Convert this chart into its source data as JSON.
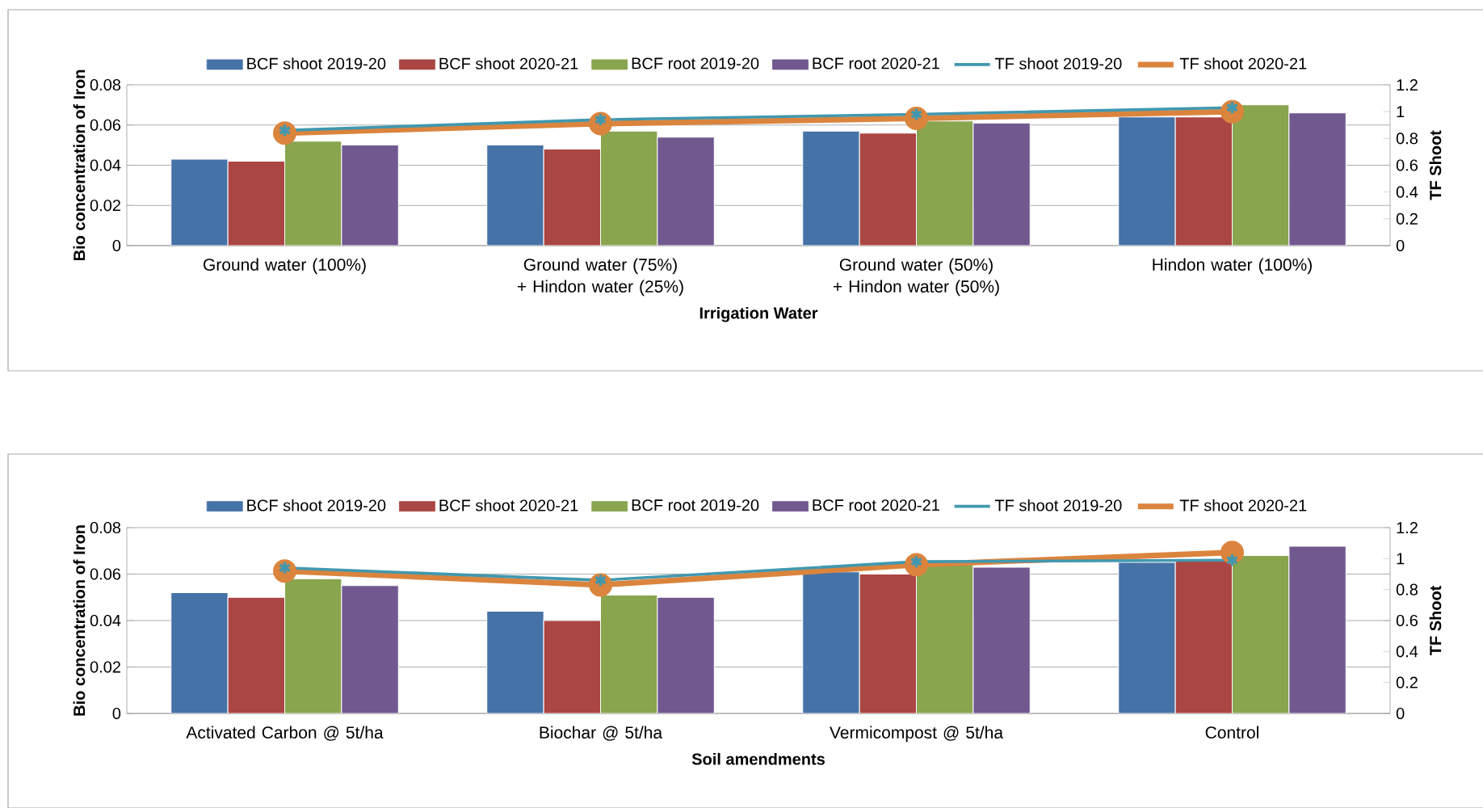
{
  "chart_data": [
    {
      "type": "bar",
      "categories": [
        "Ground water (100%)",
        "Ground water (75%) + Hindon water (25%)",
        "Ground water (50%) + Hindon water (50%)",
        "Hindon water (100%)"
      ],
      "xlabel": "Irrigation Water",
      "ylabel": "Bio concentration of Iron",
      "y2label": "TF Shoot",
      "ylim": [
        0,
        0.08
      ],
      "yticks": [
        0,
        0.02,
        0.04,
        0.06,
        0.08
      ],
      "y2lim": [
        0,
        1.2
      ],
      "y2ticks": [
        0,
        0.2,
        0.4,
        0.6,
        0.8,
        1,
        1.2
      ],
      "grid": "y",
      "legend": "top",
      "series": [
        {
          "name": "BCF shoot 2019-20",
          "color": "#4572a7",
          "values": [
            0.043,
            0.05,
            0.057,
            0.064
          ]
        },
        {
          "name": "BCF shoot 2020-21",
          "color": "#aa4643",
          "values": [
            0.042,
            0.048,
            0.056,
            0.064
          ]
        },
        {
          "name": "BCF root 2019-20",
          "color": "#89a54e",
          "values": [
            0.052,
            0.057,
            0.062,
            0.07
          ]
        },
        {
          "name": "BCF root 2020-21",
          "color": "#71588f",
          "values": [
            0.05,
            0.054,
            0.061,
            0.066
          ]
        },
        {
          "name": "TF shoot 2019-20",
          "type": "line",
          "axis": "y2",
          "marker": "cross",
          "color": "#4198af",
          "values": [
            0.86,
            0.94,
            0.98,
            1.03
          ]
        },
        {
          "name": "TF shoot 2020-21",
          "type": "line",
          "axis": "y2",
          "marker": "circle",
          "color": "#db843d",
          "values": [
            0.84,
            0.91,
            0.95,
            1.0
          ]
        }
      ]
    },
    {
      "type": "bar",
      "categories": [
        "Activated Carbon @ 5t/ha",
        "Biochar @ 5t/ha",
        "Vermicompost @ 5t/ha",
        "Control"
      ],
      "xlabel": "Soil amendments",
      "ylabel": "Bio concentration of Iron",
      "y2label": "TF Shoot",
      "ylim": [
        0,
        0.08
      ],
      "yticks": [
        0,
        0.02,
        0.04,
        0.06,
        0.08
      ],
      "y2lim": [
        0,
        1.2
      ],
      "y2ticks": [
        0,
        0.2,
        0.4,
        0.6,
        0.8,
        1,
        1.2
      ],
      "grid": "y",
      "legend": "top",
      "series": [
        {
          "name": "BCF shoot 2019-20",
          "color": "#4572a7",
          "values": [
            0.052,
            0.044,
            0.061,
            0.065
          ]
        },
        {
          "name": "BCF shoot 2020-21",
          "color": "#aa4643",
          "values": [
            0.05,
            0.04,
            0.06,
            0.066
          ]
        },
        {
          "name": "BCF root 2019-20",
          "color": "#89a54e",
          "values": [
            0.058,
            0.051,
            0.064,
            0.068
          ]
        },
        {
          "name": "BCF root 2020-21",
          "color": "#71588f",
          "values": [
            0.055,
            0.05,
            0.063,
            0.072
          ]
        },
        {
          "name": "TF shoot 2019-20",
          "type": "line",
          "axis": "y2",
          "marker": "cross",
          "color": "#4198af",
          "values": [
            0.94,
            0.86,
            0.98,
            0.99
          ]
        },
        {
          "name": "TF shoot 2020-21",
          "type": "line",
          "axis": "y2",
          "marker": "circle",
          "color": "#db843d",
          "values": [
            0.92,
            0.83,
            0.96,
            1.04
          ]
        }
      ]
    }
  ]
}
